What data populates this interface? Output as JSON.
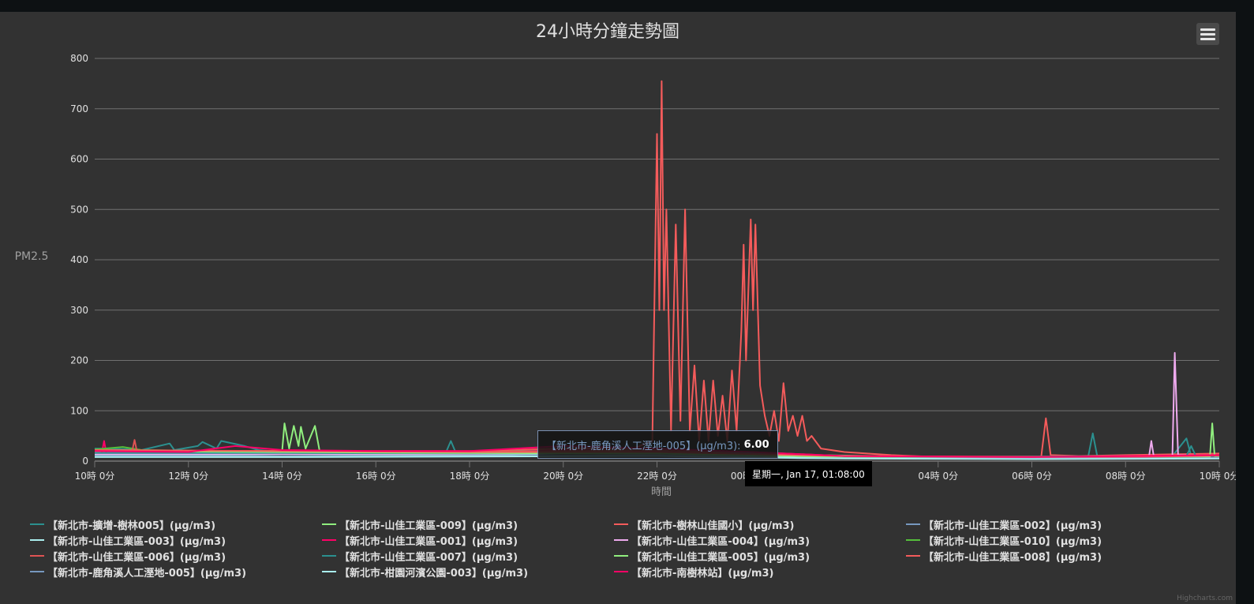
{
  "chart_data": {
    "type": "line",
    "title": "24小時分鐘走勢圖",
    "ylabel": "PM2.5",
    "xlabel": "時間",
    "ylim": [
      0,
      800
    ],
    "yticks": [
      0,
      100,
      200,
      300,
      400,
      500,
      600,
      700,
      800
    ],
    "xlim": [
      0,
      24
    ],
    "xticks": [
      {
        "x": 0,
        "label": "10時 0分"
      },
      {
        "x": 2,
        "label": "12時 0分"
      },
      {
        "x": 4,
        "label": "14時 0分"
      },
      {
        "x": 6,
        "label": "16時 0分"
      },
      {
        "x": 8,
        "label": "18時 0分"
      },
      {
        "x": 10,
        "label": "20時 0分"
      },
      {
        "x": 12,
        "label": "22時 0分"
      },
      {
        "x": 14,
        "label": "00時 0分"
      },
      {
        "x": 16,
        "label": "02時 0分"
      },
      {
        "x": 18,
        "label": "04時 0分"
      },
      {
        "x": 20,
        "label": "06時 0分"
      },
      {
        "x": 22,
        "label": "08時 0分"
      },
      {
        "x": 24,
        "label": "10時 0分"
      }
    ],
    "grid": true,
    "legend_position": "bottom",
    "series": [
      {
        "name": "【新北市-擴增-樹林005】(μg/m3)",
        "color": "#2b908f",
        "points": [
          [
            0,
            25
          ],
          [
            0.6,
            24
          ],
          [
            1.0,
            22
          ],
          [
            1.6,
            35
          ],
          [
            1.7,
            22
          ],
          [
            2.2,
            30
          ],
          [
            2.3,
            38
          ],
          [
            2.6,
            25
          ],
          [
            2.7,
            40
          ],
          [
            3.2,
            30
          ],
          [
            3.5,
            22
          ],
          [
            4.0,
            18
          ],
          [
            5.0,
            15
          ],
          [
            6.0,
            15
          ],
          [
            7.5,
            18
          ],
          [
            7.6,
            40
          ],
          [
            7.7,
            18
          ],
          [
            9.0,
            22
          ],
          [
            10.0,
            20
          ],
          [
            12.0,
            20
          ],
          [
            14.0,
            15
          ],
          [
            15.0,
            10
          ],
          [
            16.0,
            8
          ],
          [
            18.0,
            7
          ],
          [
            20.0,
            7
          ],
          [
            21.2,
            8
          ],
          [
            21.3,
            55
          ],
          [
            21.4,
            8
          ],
          [
            23.0,
            10
          ],
          [
            23.3,
            45
          ],
          [
            23.4,
            10
          ],
          [
            24,
            12
          ]
        ]
      },
      {
        "name": "【新北市-山佳工業區-009】(μg/m3)",
        "color": "#90ee7e",
        "points": [
          [
            0,
            22
          ],
          [
            3.0,
            20
          ],
          [
            4.0,
            20
          ],
          [
            4.05,
            75
          ],
          [
            4.15,
            25
          ],
          [
            4.25,
            70
          ],
          [
            4.35,
            30
          ],
          [
            4.4,
            68
          ],
          [
            4.5,
            25
          ],
          [
            4.7,
            70
          ],
          [
            4.8,
            20
          ],
          [
            6.0,
            18
          ],
          [
            8.0,
            18
          ],
          [
            10.0,
            20
          ],
          [
            14.0,
            14
          ],
          [
            18.0,
            8
          ],
          [
            22.0,
            9
          ],
          [
            24,
            10
          ]
        ]
      },
      {
        "name": "【新北市-樹林山佳國小】(μg/m3)",
        "color": "#f45b5b",
        "points": [
          [
            0,
            20
          ],
          [
            4.0,
            20
          ],
          [
            8.0,
            20
          ],
          [
            10.0,
            25
          ],
          [
            11.5,
            25
          ],
          [
            11.9,
            40
          ],
          [
            12.0,
            650
          ],
          [
            12.05,
            300
          ],
          [
            12.1,
            755
          ],
          [
            12.15,
            300
          ],
          [
            12.2,
            500
          ],
          [
            12.3,
            60
          ],
          [
            12.4,
            470
          ],
          [
            12.5,
            80
          ],
          [
            12.6,
            500
          ],
          [
            12.7,
            60
          ],
          [
            12.8,
            190
          ],
          [
            12.9,
            40
          ],
          [
            13.0,
            160
          ],
          [
            13.1,
            40
          ],
          [
            13.2,
            160
          ],
          [
            13.3,
            50
          ],
          [
            13.4,
            130
          ],
          [
            13.5,
            40
          ],
          [
            13.6,
            180
          ],
          [
            13.7,
            60
          ],
          [
            13.8,
            260
          ],
          [
            13.85,
            430
          ],
          [
            13.9,
            200
          ],
          [
            14.0,
            480
          ],
          [
            14.05,
            300
          ],
          [
            14.1,
            470
          ],
          [
            14.2,
            150
          ],
          [
            14.3,
            90
          ],
          [
            14.4,
            50
          ],
          [
            14.5,
            100
          ],
          [
            14.6,
            40
          ],
          [
            14.7,
            155
          ],
          [
            14.8,
            60
          ],
          [
            14.9,
            90
          ],
          [
            15.0,
            50
          ],
          [
            15.1,
            90
          ],
          [
            15.2,
            40
          ],
          [
            15.3,
            50
          ],
          [
            15.5,
            25
          ],
          [
            16.0,
            18
          ],
          [
            17.0,
            12
          ],
          [
            18.0,
            8
          ],
          [
            19.0,
            7
          ],
          [
            20.0,
            8
          ],
          [
            20.2,
            9
          ],
          [
            20.3,
            85
          ],
          [
            20.4,
            12
          ],
          [
            21.0,
            10
          ],
          [
            22.0,
            12
          ],
          [
            24,
            15
          ]
        ]
      },
      {
        "name": "【新北市-山佳工業區-002】(μg/m3)",
        "color": "#7798bf",
        "points": [
          [
            0,
            18
          ],
          [
            4.0,
            17
          ],
          [
            8.0,
            16
          ],
          [
            10.0,
            20
          ],
          [
            12.0,
            22
          ],
          [
            14.0,
            15
          ],
          [
            16.0,
            8
          ],
          [
            20.0,
            7
          ],
          [
            24,
            9
          ]
        ]
      },
      {
        "name": "【新北市-山佳工業區-003】(μg/m3)",
        "color": "#aaeeee",
        "points": [
          [
            0,
            12
          ],
          [
            2.0,
            12
          ],
          [
            4.0,
            14
          ],
          [
            8.0,
            12
          ],
          [
            10.0,
            15
          ],
          [
            12.0,
            15
          ],
          [
            14.0,
            10
          ],
          [
            16.0,
            6
          ],
          [
            20.0,
            5
          ],
          [
            24,
            6
          ]
        ]
      },
      {
        "name": "【新北市-山佳工業區-001】(μg/m3)",
        "color": "#ff0066",
        "points": [
          [
            0,
            15
          ],
          [
            0.15,
            15
          ],
          [
            0.2,
            40
          ],
          [
            0.25,
            15
          ],
          [
            2.0,
            16
          ],
          [
            4.0,
            15
          ],
          [
            8.0,
            15
          ],
          [
            10.0,
            22
          ],
          [
            12.0,
            20
          ],
          [
            14.0,
            14
          ],
          [
            16.0,
            9
          ],
          [
            20.0,
            7
          ],
          [
            24,
            9
          ]
        ]
      },
      {
        "name": "【新北市-山佳工業區-004】(μg/m3)",
        "color": "#eeaaee",
        "points": [
          [
            0,
            14
          ],
          [
            8.0,
            14
          ],
          [
            12.0,
            18
          ],
          [
            16.0,
            8
          ],
          [
            22.5,
            8
          ],
          [
            22.55,
            40
          ],
          [
            22.6,
            10
          ],
          [
            23.0,
            10
          ],
          [
            23.05,
            215
          ],
          [
            23.12,
            12
          ],
          [
            24,
            10
          ]
        ]
      },
      {
        "name": "【新北市-山佳工業區-010】(μg/m3)",
        "color": "#55bf3b",
        "points": [
          [
            0,
            23
          ],
          [
            0.6,
            28
          ],
          [
            1.0,
            22
          ],
          [
            4.0,
            18
          ],
          [
            8.0,
            17
          ],
          [
            12.0,
            18
          ],
          [
            16.0,
            9
          ],
          [
            22.0,
            8
          ],
          [
            24,
            10
          ]
        ]
      },
      {
        "name": "【新北市-山佳工業區-006】(μg/m3)",
        "color": "#df5353",
        "points": [
          [
            0,
            20
          ],
          [
            0.8,
            20
          ],
          [
            0.85,
            42
          ],
          [
            0.9,
            20
          ],
          [
            4.0,
            18
          ],
          [
            8.0,
            18
          ],
          [
            12.0,
            22
          ],
          [
            14.0,
            18
          ],
          [
            16.0,
            10
          ],
          [
            20.0,
            8
          ],
          [
            24,
            12
          ]
        ]
      },
      {
        "name": "【新北市-山佳工業區-007】(μg/m3)",
        "color": "#2b908f",
        "points": [
          [
            0,
            16
          ],
          [
            4.0,
            16
          ],
          [
            8.0,
            15
          ],
          [
            12.0,
            16
          ],
          [
            16.0,
            8
          ],
          [
            23.3,
            10
          ],
          [
            23.4,
            30
          ],
          [
            23.5,
            10
          ],
          [
            24,
            9
          ]
        ]
      },
      {
        "name": "【新北市-山佳工業區-005】(μg/m3)",
        "color": "#90ee7e",
        "points": [
          [
            0,
            20
          ],
          [
            4.0,
            18
          ],
          [
            8.0,
            16
          ],
          [
            12.0,
            15
          ],
          [
            16.0,
            8
          ],
          [
            23.8,
            8
          ],
          [
            23.85,
            75
          ],
          [
            23.9,
            10
          ],
          [
            24,
            10
          ]
        ]
      },
      {
        "name": "【新北市-山佳工業區-008】(μg/m3)",
        "color": "#f45b5b",
        "points": [
          [
            0,
            22
          ],
          [
            4.0,
            20
          ],
          [
            8.0,
            18
          ],
          [
            12.0,
            18
          ],
          [
            16.0,
            10
          ],
          [
            22.0,
            8
          ],
          [
            24,
            11
          ]
        ]
      },
      {
        "name": "【新北市-鹿角溪人工溼地-005】(μg/m3)",
        "color": "#7798bf",
        "points": [
          [
            0,
            10
          ],
          [
            4.0,
            10
          ],
          [
            8.0,
            10
          ],
          [
            12.0,
            12
          ],
          [
            15.0,
            6
          ],
          [
            20.0,
            5
          ],
          [
            24,
            6
          ]
        ]
      },
      {
        "name": "【新北市-柑園河濱公園-003】(μg/m3)",
        "color": "#aaeeee",
        "points": [
          [
            0,
            8
          ],
          [
            4.0,
            8
          ],
          [
            8.0,
            9
          ],
          [
            12.0,
            10
          ],
          [
            16.0,
            5
          ],
          [
            20.0,
            4
          ],
          [
            24,
            5
          ]
        ]
      },
      {
        "name": "【新北市-南樹林站】(μg/m3)",
        "color": "#ff0066",
        "points": [
          [
            0,
            20
          ],
          [
            2.0,
            18
          ],
          [
            3.0,
            30
          ],
          [
            4.0,
            22
          ],
          [
            6.0,
            20
          ],
          [
            8.0,
            20
          ],
          [
            10.0,
            30
          ],
          [
            12.0,
            25
          ],
          [
            14.0,
            18
          ],
          [
            16.0,
            10
          ],
          [
            20.0,
            8
          ],
          [
            24,
            12
          ]
        ]
      }
    ]
  },
  "tooltip": {
    "series": "【新北市-鹿角溪人工溼地-005】(μg/m3):",
    "value": "6.00",
    "x_label": "星期一, Jan 17, 01:08:00"
  },
  "credits": "Highcharts.com",
  "colors": {
    "background": "#323232",
    "grid": "#707070",
    "axis_text": "#e0e0e0"
  }
}
